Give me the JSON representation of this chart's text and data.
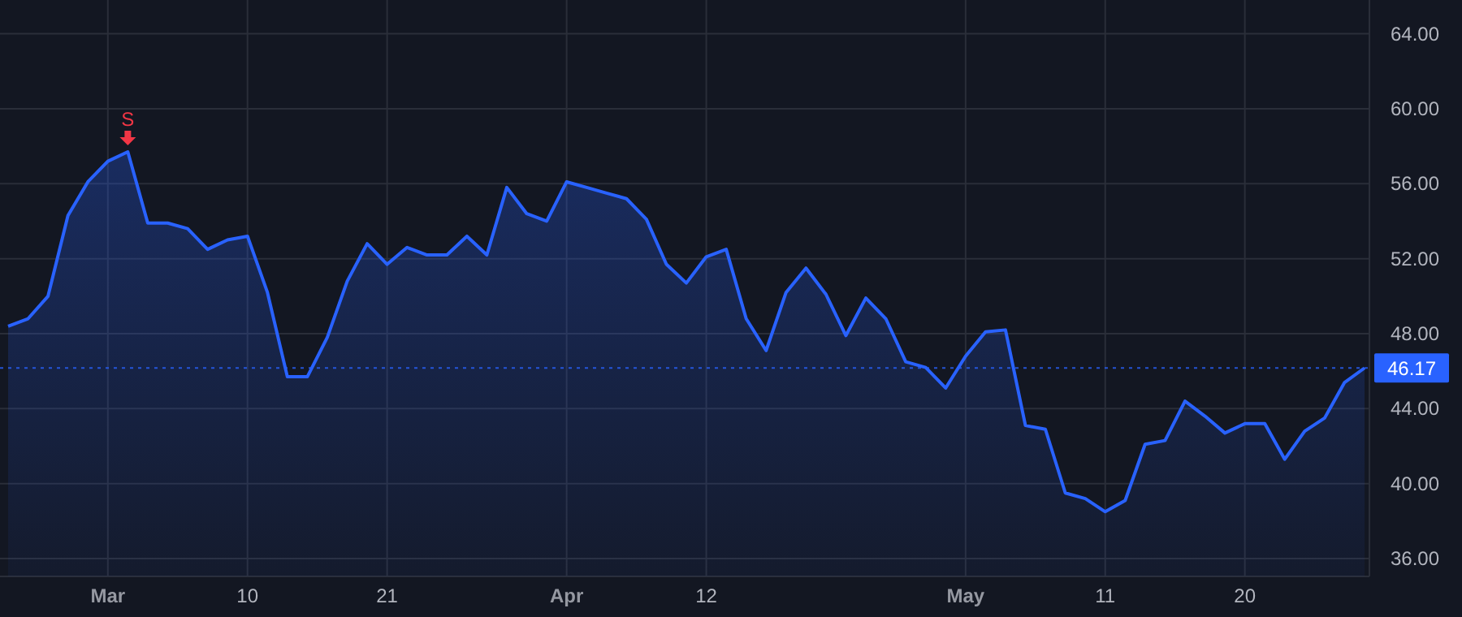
{
  "chart_data": {
    "type": "area",
    "categories": [
      null,
      null,
      null,
      null,
      null,
      "Mar",
      null,
      null,
      null,
      null,
      null,
      null,
      "10",
      null,
      null,
      null,
      null,
      null,
      null,
      "21",
      null,
      null,
      null,
      null,
      null,
      null,
      null,
      null,
      "Apr",
      null,
      null,
      null,
      null,
      null,
      null,
      "12",
      null,
      null,
      null,
      null,
      null,
      null,
      null,
      null,
      null,
      null,
      null,
      null,
      "May",
      null,
      null,
      null,
      null,
      null,
      null,
      "11",
      null,
      null,
      null,
      null,
      null,
      null,
      "20",
      null,
      null,
      null,
      null,
      null,
      null
    ],
    "series": [
      {
        "color": "#2962ff",
        "values": [
          48.4,
          48.8,
          50.0,
          54.3,
          56.1,
          57.2,
          57.7,
          53.9,
          53.9,
          53.6,
          52.5,
          53.0,
          53.2,
          50.2,
          45.7,
          45.7,
          47.8,
          50.8,
          52.8,
          51.7,
          52.6,
          52.2,
          52.2,
          53.2,
          52.2,
          55.8,
          54.4,
          54.0,
          56.1,
          55.8,
          55.5,
          55.2,
          54.1,
          51.7,
          50.7,
          52.1,
          52.5,
          48.8,
          47.1,
          50.2,
          51.5,
          50.1,
          47.9,
          49.9,
          48.8,
          46.5,
          46.2,
          45.1,
          46.8,
          48.1,
          48.2,
          43.1,
          42.9,
          39.5,
          39.2,
          38.5,
          39.1,
          42.1,
          42.3,
          44.4,
          43.6,
          42.7,
          43.2,
          43.2,
          41.3,
          42.8,
          43.5,
          45.4,
          46.17
        ]
      }
    ],
    "ylim": [
      35.05,
      65.8
    ],
    "yticks": [
      {
        "value": 36,
        "label": "36.00"
      },
      {
        "value": 40,
        "label": "40.00"
      },
      {
        "value": 44,
        "label": "44.00"
      },
      {
        "value": 48,
        "label": "48.00"
      },
      {
        "value": 52,
        "label": "52.00"
      },
      {
        "value": 56,
        "label": "56.00"
      },
      {
        "value": 60,
        "label": "60.00"
      },
      {
        "value": 64,
        "label": "64.00"
      }
    ],
    "grid": true,
    "ref_lines": [
      {
        "axis": "y",
        "value": 46.17,
        "label": "46.17",
        "color": "#2962ff",
        "line_style": "dotted"
      }
    ],
    "annotations": [
      {
        "text": "S",
        "y": 57.7
      }
    ]
  }
}
